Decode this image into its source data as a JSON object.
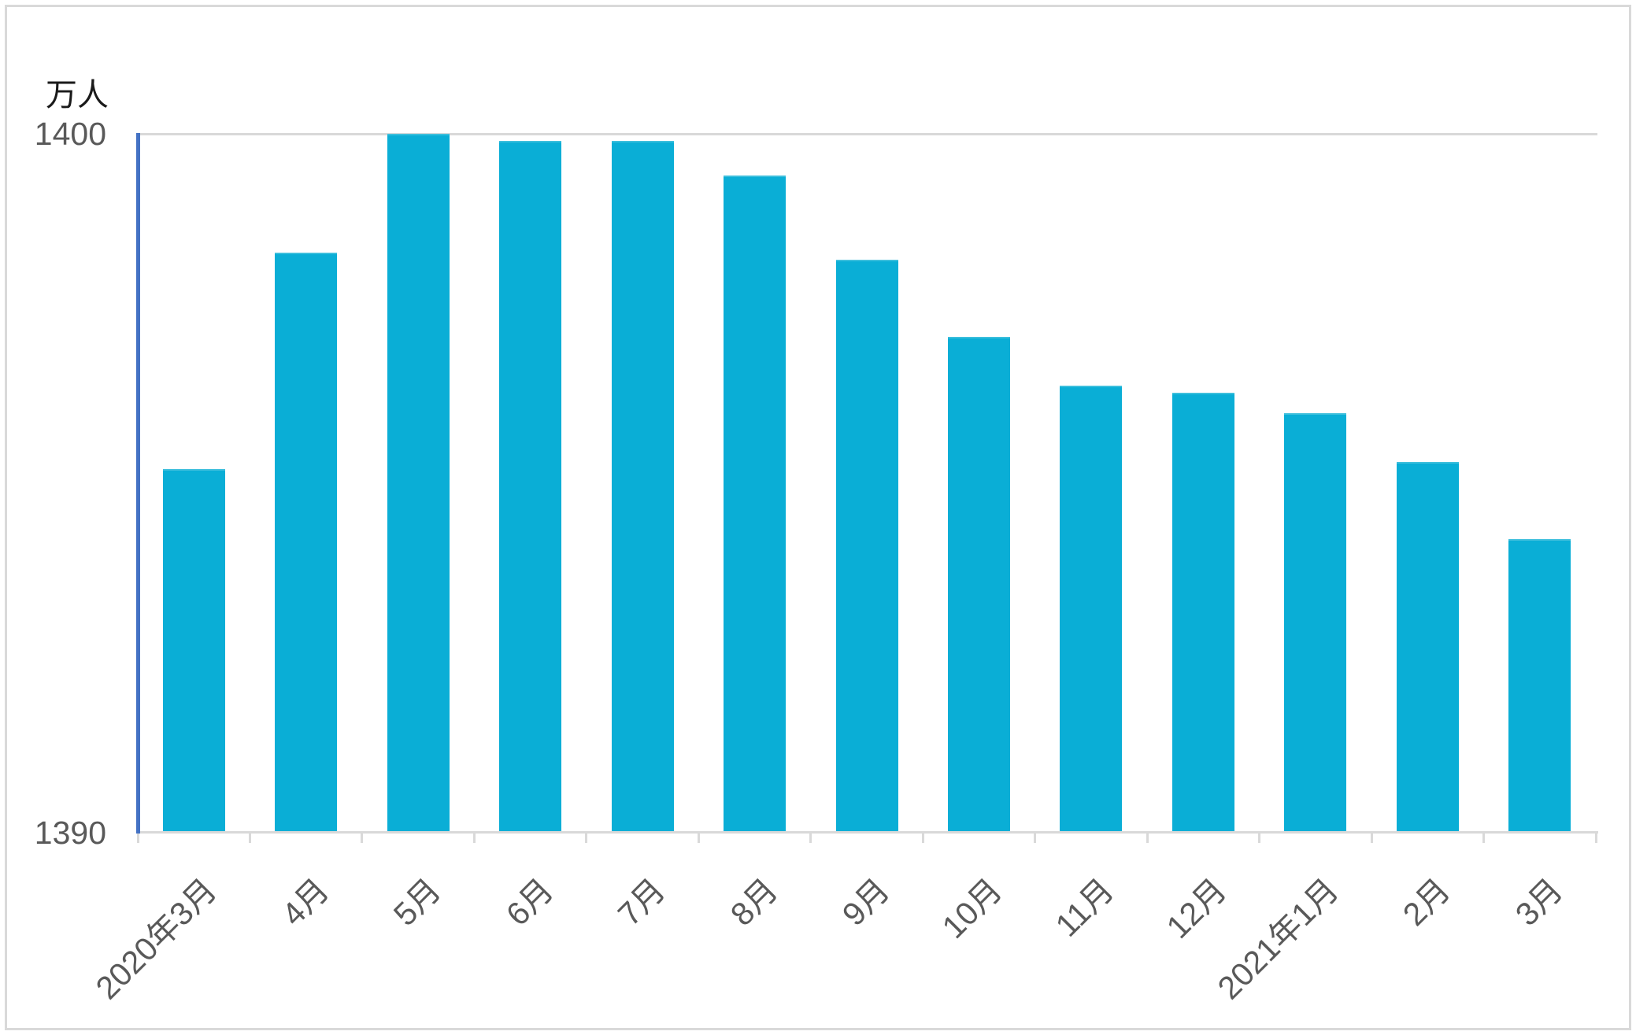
{
  "chart_data": {
    "type": "bar",
    "title": "",
    "ylabel": "万人",
    "xlabel": "",
    "categories": [
      "2020年3月",
      "4月",
      "5月",
      "6月",
      "7月",
      "8月",
      "9月",
      "10月",
      "11月",
      "12月",
      "2021年1月",
      "2月",
      "3月"
    ],
    "values": [
      1395.2,
      1398.3,
      1400.0,
      1399.9,
      1399.9,
      1399.4,
      1398.2,
      1397.1,
      1396.4,
      1396.3,
      1396.0,
      1395.3,
      1394.2
    ],
    "ylim": [
      1390,
      1400
    ],
    "yticks": [
      1390,
      1400
    ],
    "grid": "horizontal gridline at top value only",
    "legend": "none",
    "colors": {
      "bar": "#0aaed6",
      "bar_top_edge": "#3cbedc",
      "y_axis_line": "#4472c4",
      "x_axis_line": "#d9d9d9",
      "gridline": "#d9d9d9",
      "tick_label": "#595959",
      "unit_label": "#1a1a1a"
    }
  },
  "y_axis": {
    "unit_label": "万人",
    "max_label": "1400",
    "min_label": "1390"
  }
}
